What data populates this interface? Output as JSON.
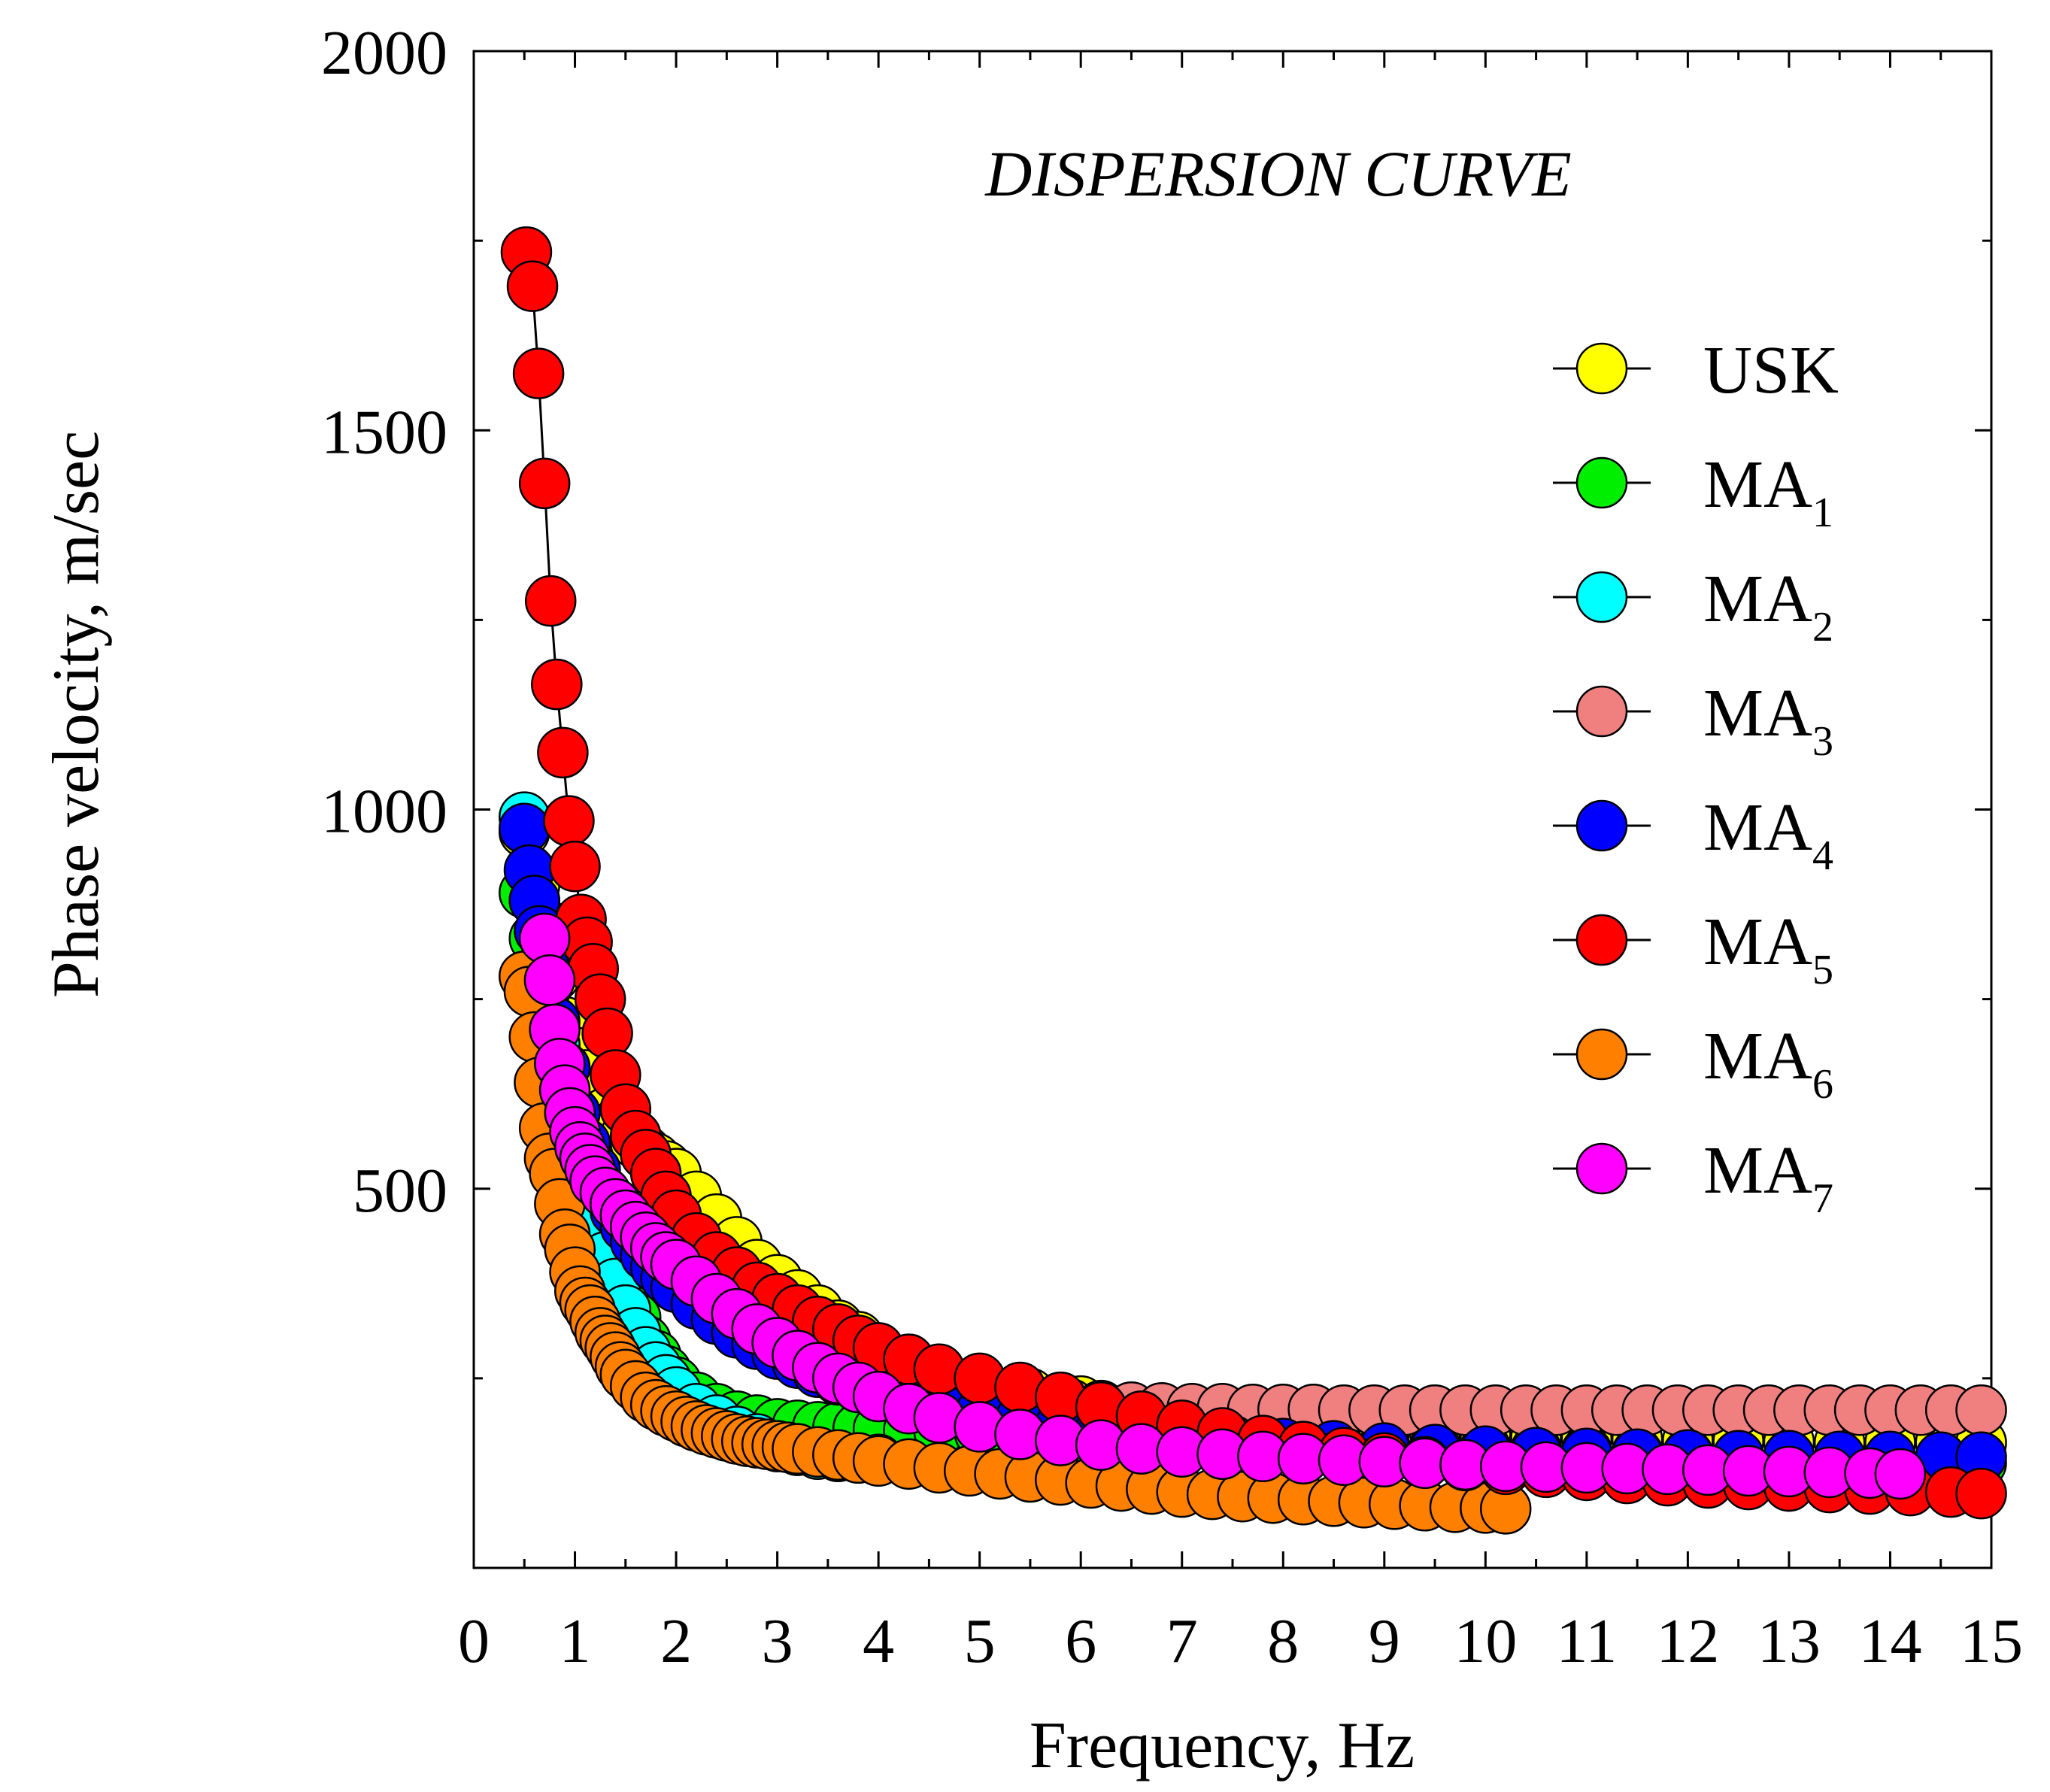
{
  "chart_data": {
    "type": "scatter",
    "title": "DISPERSION CURVE",
    "xlabel": "Frequency, Hz",
    "ylabel": "Phase velocity, m/sec",
    "xlim": [
      0,
      15
    ],
    "ylim": [
      0,
      2000
    ],
    "x_ticks": [
      "0",
      "1",
      "2",
      "3",
      "4",
      "5",
      "6",
      "7",
      "8",
      "9",
      "10",
      "11",
      "12",
      "13",
      "14",
      "15"
    ],
    "y_ticks": [
      "500",
      "1000",
      "1500",
      "2000"
    ],
    "legend_position": "top-right",
    "series": [
      {
        "name": "USK",
        "base": "USK",
        "sub": "",
        "color": "#ffff00",
        "x": [
          0.5,
          0.6,
          0.7,
          0.8,
          0.9,
          1.0,
          1.1,
          1.2,
          1.3,
          1.4,
          1.5,
          1.6,
          1.7,
          1.8,
          1.9,
          2.0,
          2.2,
          2.4,
          2.6,
          2.8,
          3.0,
          3.2,
          3.4,
          3.6,
          3.8,
          4.0,
          4.3,
          4.6,
          5.0,
          5.5,
          6.0,
          6.5,
          7.0,
          7.5,
          8.0,
          8.5,
          9.0,
          9.5,
          10.0,
          10.5,
          11.0,
          11.5,
          12.0,
          12.5,
          13.0,
          13.5,
          14.0,
          14.5,
          14.9
        ],
        "y": [
          970,
          900,
          850,
          780,
          720,
          680,
          650,
          620,
          600,
          585,
          570,
          560,
          550,
          540,
          530,
          520,
          490,
          460,
          430,
          400,
          380,
          360,
          340,
          320,
          305,
          290,
          275,
          260,
          245,
          230,
          220,
          210,
          200,
          195,
          190,
          185,
          180,
          178,
          175,
          172,
          170,
          170,
          168,
          167,
          166,
          165,
          165,
          165,
          165
        ]
      },
      {
        "name": "MA1",
        "base": "MA",
        "sub": "1",
        "color": "#00ee00",
        "x": [
          0.5,
          0.6,
          0.7,
          0.8,
          0.9,
          1.0,
          1.1,
          1.2,
          1.3,
          1.4,
          1.5,
          1.6,
          1.7,
          1.8,
          1.9,
          2.0,
          2.2,
          2.4,
          2.6,
          2.8,
          3.0,
          3.2,
          3.4,
          3.6,
          3.8,
          4.0,
          4.3,
          4.6,
          5.0,
          5.5,
          6.0,
          6.5,
          7.0,
          7.5,
          8.0,
          8.5,
          9.0,
          9.5,
          10.0,
          10.5,
          11.0,
          11.5,
          12.0,
          12.5,
          13.0,
          13.5,
          14.0,
          14.5,
          14.9
        ],
        "y": [
          890,
          830,
          760,
          690,
          620,
          560,
          510,
          470,
          430,
          395,
          360,
          330,
          300,
          280,
          260,
          245,
          225,
          210,
          200,
          195,
          190,
          188,
          186,
          185,
          184,
          183,
          182,
          180,
          178,
          176,
          174,
          172,
          170,
          168,
          166,
          164,
          162,
          160,
          158,
          156,
          154,
          152,
          150,
          148,
          146,
          144,
          142,
          140,
          138
        ]
      },
      {
        "name": "MA2",
        "base": "MA",
        "sub": "2",
        "color": "#00ffff",
        "x": [
          0.5,
          0.6,
          0.7,
          0.8,
          0.9,
          1.0,
          1.1,
          1.2,
          1.3,
          1.4,
          1.5,
          1.6,
          1.7,
          1.8,
          1.9,
          2.0,
          2.2,
          2.4,
          2.6,
          2.8,
          3.0,
          3.2,
          3.4,
          3.6,
          3.8,
          4.0
        ],
        "y": [
          990,
          880,
          780,
          690,
          610,
          540,
          490,
          450,
          410,
          375,
          340,
          310,
          285,
          265,
          248,
          232,
          210,
          195,
          180,
          170,
          160,
          155,
          150,
          147,
          145,
          143
        ]
      },
      {
        "name": "MA3",
        "base": "MA",
        "sub": "3",
        "color": "#f08080",
        "x": [
          2.5,
          2.7,
          2.9,
          3.1,
          3.3,
          3.5,
          3.7,
          3.9,
          4.1,
          4.3,
          4.5,
          4.7,
          4.9,
          5.1,
          5.3,
          5.5,
          5.7,
          5.9,
          6.2,
          6.5,
          6.8,
          7.1,
          7.4,
          7.7,
          8.0,
          8.3,
          8.6,
          8.9,
          9.2,
          9.5,
          9.8,
          10.1,
          10.4,
          10.7,
          11.0,
          11.3,
          11.6,
          11.9,
          12.2,
          12.5,
          12.8,
          13.1,
          13.4,
          13.7,
          14.0,
          14.3,
          14.6,
          14.9
        ],
        "y": [
          330,
          310,
          295,
          285,
          275,
          268,
          262,
          256,
          250,
          245,
          240,
          236,
          232,
          228,
          224,
          221,
          218,
          216,
          214,
          212,
          211,
          210,
          210,
          209,
          209,
          209,
          208,
          208,
          208,
          208,
          208,
          208,
          208,
          208,
          208,
          208,
          208,
          208,
          208,
          208,
          208,
          208,
          208,
          208,
          208,
          208,
          208,
          208
        ]
      },
      {
        "name": "MA4",
        "base": "MA",
        "sub": "4",
        "color": "#0000ff",
        "x": [
          0.5,
          0.55,
          0.6,
          0.65,
          0.7,
          0.8,
          0.9,
          1.0,
          1.1,
          1.2,
          1.3,
          1.4,
          1.5,
          1.6,
          1.7,
          1.8,
          1.9,
          2.0,
          2.2,
          2.4,
          2.6,
          2.8,
          3.0,
          3.2,
          3.4,
          3.6,
          3.8,
          4.0,
          4.3,
          4.6,
          5.0,
          5.4,
          5.8,
          6.2,
          6.6,
          7.0,
          7.5,
          8.0,
          8.5,
          9.0,
          9.5,
          10.0,
          10.5,
          11.0,
          11.5,
          12.0,
          12.5,
          13.0,
          13.5,
          14.0,
          14.5,
          14.9
        ],
        "y": [
          975,
          920,
          880,
          840,
          790,
          720,
          660,
          600,
          560,
          525,
          495,
          470,
          450,
          430,
          412,
          396,
          382,
          370,
          348,
          328,
          310,
          295,
          282,
          270,
          258,
          248,
          240,
          232,
          222,
          213,
          203,
          195,
          188,
          182,
          177,
          172,
          168,
          164,
          161,
          158,
          156,
          154,
          152,
          151,
          150,
          149,
          148,
          148,
          147,
          147,
          146,
          146
        ]
      },
      {
        "name": "MA5",
        "base": "MA",
        "sub": "5",
        "color": "#ff0000",
        "x": [
          0.52,
          0.58,
          0.64,
          0.7,
          0.76,
          0.82,
          0.88,
          0.94,
          1.0,
          1.06,
          1.12,
          1.18,
          1.25,
          1.32,
          1.4,
          1.5,
          1.6,
          1.7,
          1.8,
          1.9,
          2.0,
          2.2,
          2.4,
          2.6,
          2.8,
          3.0,
          3.2,
          3.4,
          3.6,
          3.8,
          4.0,
          4.3,
          4.6,
          5.0,
          5.4,
          5.8,
          6.2,
          6.6,
          7.0,
          7.4,
          7.8,
          8.2,
          8.6,
          9.0,
          9.4,
          9.8,
          10.2,
          10.6,
          11.0,
          11.4,
          11.8,
          12.2,
          12.6,
          13.0,
          13.4,
          13.8,
          14.2,
          14.6,
          14.9
        ],
        "y": [
          1735,
          1690,
          1575,
          1430,
          1275,
          1165,
          1075,
          985,
          925,
          855,
          825,
          790,
          750,
          705,
          650,
          605,
          570,
          545,
          520,
          490,
          465,
          435,
          410,
          390,
          370,
          355,
          340,
          325,
          315,
          300,
          290,
          275,
          262,
          250,
          238,
          225,
          212,
          200,
          188,
          178,
          168,
          160,
          152,
          145,
          140,
          135,
          130,
          126,
          122,
          118,
          115,
          112,
          110,
          108,
          106,
          104,
          102,
          100,
          98
        ]
      },
      {
        "name": "MA6",
        "base": "MA",
        "sub": "6",
        "color": "#ff8000",
        "x": [
          0.5,
          0.55,
          0.6,
          0.65,
          0.7,
          0.75,
          0.8,
          0.85,
          0.9,
          0.95,
          1.0,
          1.05,
          1.1,
          1.15,
          1.2,
          1.25,
          1.3,
          1.35,
          1.4,
          1.45,
          1.5,
          1.6,
          1.7,
          1.8,
          1.9,
          2.0,
          2.1,
          2.2,
          2.3,
          2.4,
          2.5,
          2.6,
          2.7,
          2.8,
          2.9,
          3.0,
          3.1,
          3.2,
          3.4,
          3.6,
          3.8,
          4.0,
          4.3,
          4.6,
          4.9,
          5.2,
          5.5,
          5.8,
          6.1,
          6.4,
          6.7,
          7.0,
          7.3,
          7.6,
          7.9,
          8.2,
          8.5,
          8.8,
          9.1,
          9.4,
          9.7,
          10.0,
          10.2
        ],
        "y": [
          780,
          760,
          700,
          640,
          580,
          540,
          520,
          480,
          440,
          420,
          390,
          365,
          350,
          340,
          325,
          310,
          300,
          290,
          278,
          265,
          255,
          240,
          225,
          215,
          207,
          200,
          193,
          187,
          182,
          178,
          174,
          170,
          167,
          165,
          163,
          161,
          159,
          157,
          153,
          149,
          145,
          141,
          137,
          132,
          128,
          124,
          120,
          116,
          112,
          108,
          104,
          100,
          97,
          94,
          92,
          90,
          88,
          86,
          84,
          82,
          80,
          79,
          78
        ]
      },
      {
        "name": "MA7",
        "base": "MA",
        "sub": "7",
        "color": "#ff00ff",
        "x": [
          0.7,
          0.75,
          0.8,
          0.85,
          0.9,
          0.95,
          1.0,
          1.05,
          1.1,
          1.15,
          1.2,
          1.3,
          1.4,
          1.5,
          1.6,
          1.7,
          1.8,
          1.9,
          2.0,
          2.2,
          2.4,
          2.6,
          2.8,
          3.0,
          3.2,
          3.4,
          3.6,
          3.8,
          4.0,
          4.3,
          4.6,
          5.0,
          5.4,
          5.8,
          6.2,
          6.6,
          7.0,
          7.4,
          7.8,
          8.2,
          8.6,
          9.0,
          9.4,
          9.8,
          10.2,
          10.6,
          11.0,
          11.4,
          11.8,
          12.2,
          12.6,
          13.0,
          13.4,
          13.8,
          14.1
        ],
        "y": [
          830,
          775,
          710,
          665,
          630,
          600,
          575,
          555,
          540,
          525,
          510,
          495,
          480,
          465,
          450,
          436,
          422,
          410,
          400,
          378,
          355,
          335,
          315,
          297,
          280,
          264,
          250,
          238,
          226,
          210,
          198,
          186,
          176,
          168,
          162,
          157,
          153,
          150,
          147,
          144,
          142,
          140,
          138,
          136,
          134,
          133,
          132,
          131,
          130,
          129,
          128,
          127,
          126,
          125,
          124
        ]
      }
    ]
  }
}
